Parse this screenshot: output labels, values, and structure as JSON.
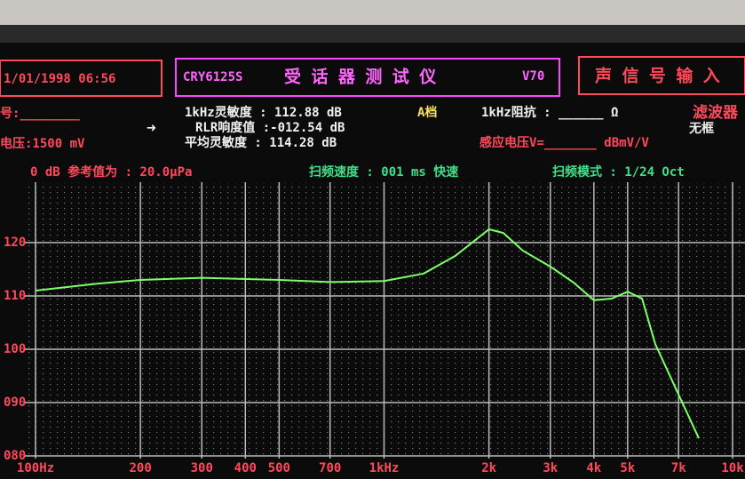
{
  "screen": {
    "datetime": "1/01/1998 06:56",
    "model": "CRY6125S",
    "device": "受 话 器 测 试 仪",
    "version": "V70",
    "input": "声 信 号 输 入",
    "number_label": "号:________",
    "voltage": "电压:1500 mV",
    "sens_1k": "1kHz灵敏度 : 112.88 dB",
    "range": "A档",
    "rlr": "RLR响度值 :-012.54 dB",
    "avg_sens": "平均灵敏度 : 114.28 dB",
    "impedance": "1kHz阻抗 : ______ Ω",
    "filter": "滤波器",
    "no_frame": "无框",
    "induced": "感应电压V=_______ dBmV/V",
    "reference": "0 dB 参考值为 : 20.0μPa",
    "sweep_speed": "扫频速度 : 001 ms 快速",
    "sweep_mode": "扫频模式 : 1/24 Oct"
  },
  "chart_data": {
    "type": "line",
    "log_x": true,
    "grid": true,
    "x": [
      100,
      150,
      200,
      300,
      500,
      700,
      1000,
      1300,
      1600,
      2000,
      2200,
      2500,
      3000,
      3500,
      4000,
      4500,
      5000,
      5500,
      6000,
      7000,
      8000
    ],
    "series": [
      {
        "color": "#7dff6a",
        "values": [
          111,
          112.3,
          113,
          113.4,
          113,
          112.6,
          112.8,
          114.2,
          117.5,
          122.5,
          121.8,
          118.5,
          115.5,
          112.5,
          109.2,
          109.5,
          110.8,
          109.5,
          101,
          91.5,
          83.3
        ]
      }
    ],
    "xlim": [
      100,
      10000
    ],
    "ylim": [
      80,
      130
    ],
    "xticks": [
      {
        "value": 100,
        "label": "100Hz"
      },
      200,
      300,
      400,
      500,
      700,
      {
        "value": 1000,
        "label": "1kHz"
      },
      {
        "value": 2000,
        "label": "2k"
      },
      {
        "value": 3000,
        "label": "3k"
      },
      {
        "value": 4000,
        "label": "4k"
      },
      {
        "value": 5000,
        "label": "5k"
      },
      {
        "value": 7000,
        "label": "7k"
      },
      {
        "value": 10000,
        "label": "10k"
      }
    ],
    "yticks": [
      {
        "value": 80,
        "label": "080"
      },
      {
        "value": 90,
        "label": "090"
      },
      100,
      110,
      120
    ]
  }
}
